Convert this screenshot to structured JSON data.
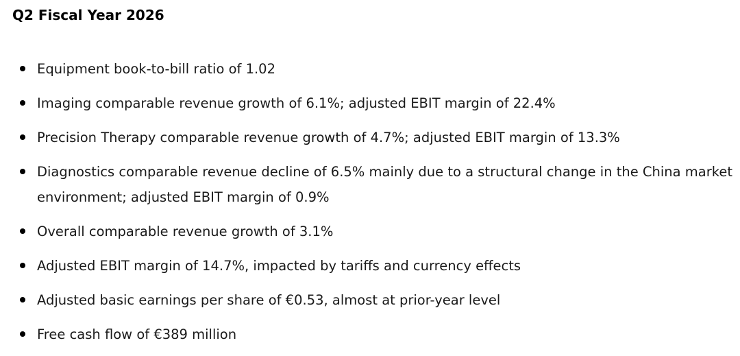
{
  "heading": "Q2 Fiscal Year 2026",
  "bullets": [
    "Equipment book-to-bill ratio of 1.02",
    "Imaging comparable revenue growth of 6.1%; adjusted EBIT margin of 22.4%",
    "Precision Therapy comparable revenue growth of 4.7%; adjusted EBIT margin of 13.3%",
    "Diagnostics comparable revenue decline of 6.5% mainly due to a structural change in the China market environment; adjusted EBIT margin of 0.9%",
    "Overall comparable revenue growth of 3.1%",
    "Adjusted EBIT margin of 14.7%, impacted by tariffs and currency effects",
    "Adjusted basic earnings per share of €0.53, almost at prior-year level",
    "Free cash flow of €389 million"
  ]
}
